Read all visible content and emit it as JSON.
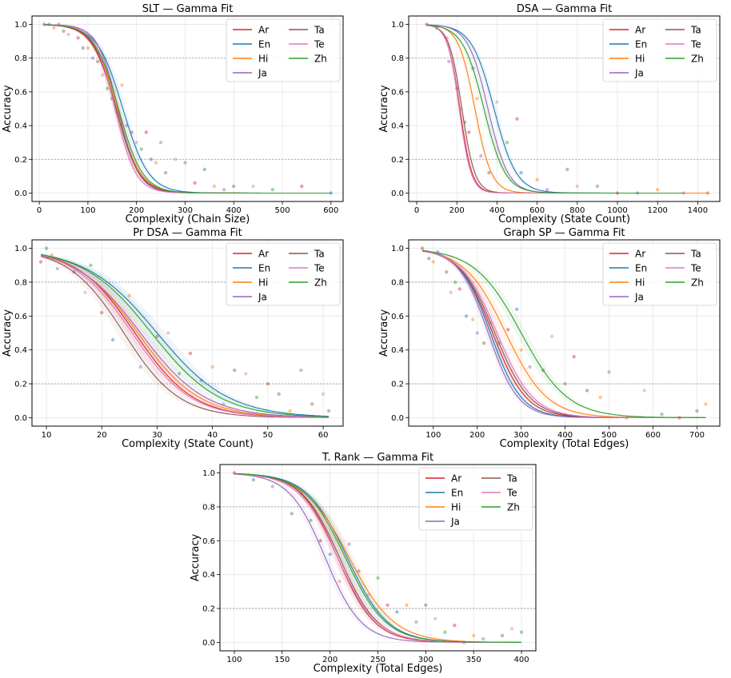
{
  "chart_data": [
    {
      "type": "line",
      "title": "SLT — Gamma Fit",
      "xlabel": "Complexity (Chain Size)",
      "ylabel": "Accuracy",
      "xlim": [
        -15,
        625
      ],
      "ylim": [
        -0.05,
        1.05
      ],
      "xticks": [
        0,
        100,
        200,
        300,
        400,
        500,
        600
      ],
      "yticks": [
        0.0,
        0.2,
        0.4,
        0.6,
        0.8,
        1.0
      ],
      "legend_position": "upper-right",
      "grid": true,
      "reference_lines": [
        0.2,
        0.8
      ],
      "x_fit_range": [
        10,
        600
      ],
      "series": [
        {
          "name": "Ar",
          "color": "#d62728",
          "fit": {
            "mid": 158,
            "width": 42
          }
        },
        {
          "name": "En",
          "color": "#1f77b4",
          "fit": {
            "mid": 172,
            "width": 45
          }
        },
        {
          "name": "Hi",
          "color": "#ff7f0e",
          "fit": {
            "mid": 160,
            "width": 40
          }
        },
        {
          "name": "Ja",
          "color": "#9467bd",
          "fit": {
            "mid": 162,
            "width": 36
          }
        },
        {
          "name": "Ta",
          "color": "#8c564b",
          "fit": {
            "mid": 158,
            "width": 40
          }
        },
        {
          "name": "Te",
          "color": "#e377c2",
          "fit": {
            "mid": 156,
            "width": 36
          }
        },
        {
          "name": "Zh",
          "color": "#2ca02c",
          "fit": {
            "mid": 163,
            "width": 42
          }
        }
      ],
      "points": [
        {
          "x": 10,
          "y": 1.0
        },
        {
          "x": 20,
          "y": 1.0
        },
        {
          "x": 30,
          "y": 0.98
        },
        {
          "x": 40,
          "y": 1.0
        },
        {
          "x": 50,
          "y": 0.96
        },
        {
          "x": 60,
          "y": 0.94
        },
        {
          "x": 70,
          "y": 0.98
        },
        {
          "x": 80,
          "y": 0.92
        },
        {
          "x": 90,
          "y": 0.86
        },
        {
          "x": 100,
          "y": 0.86
        },
        {
          "x": 110,
          "y": 0.8
        },
        {
          "x": 120,
          "y": 0.78
        },
        {
          "x": 130,
          "y": 0.7
        },
        {
          "x": 140,
          "y": 0.62
        },
        {
          "x": 150,
          "y": 0.56
        },
        {
          "x": 160,
          "y": 0.48
        },
        {
          "x": 170,
          "y": 0.64
        },
        {
          "x": 180,
          "y": 0.4
        },
        {
          "x": 190,
          "y": 0.36
        },
        {
          "x": 200,
          "y": 0.3
        },
        {
          "x": 210,
          "y": 0.26
        },
        {
          "x": 220,
          "y": 0.36
        },
        {
          "x": 230,
          "y": 0.2
        },
        {
          "x": 240,
          "y": 0.18
        },
        {
          "x": 250,
          "y": 0.3
        },
        {
          "x": 260,
          "y": 0.12
        },
        {
          "x": 280,
          "y": 0.2
        },
        {
          "x": 300,
          "y": 0.18
        },
        {
          "x": 320,
          "y": 0.06
        },
        {
          "x": 340,
          "y": 0.14
        },
        {
          "x": 360,
          "y": 0.04
        },
        {
          "x": 380,
          "y": 0.02
        },
        {
          "x": 400,
          "y": 0.04
        },
        {
          "x": 440,
          "y": 0.04
        },
        {
          "x": 480,
          "y": 0.02
        },
        {
          "x": 540,
          "y": 0.04
        },
        {
          "x": 600,
          "y": 0.0
        }
      ]
    },
    {
      "type": "line",
      "title": "DSA — Gamma Fit",
      "xlabel": "Complexity (State Count)",
      "ylabel": "Accuracy",
      "xlim": [
        -40,
        1510
      ],
      "ylim": [
        -0.05,
        1.05
      ],
      "xticks": [
        0,
        200,
        400,
        600,
        800,
        1000,
        1200,
        1400
      ],
      "yticks": [
        0.0,
        0.2,
        0.4,
        0.6,
        0.8,
        1.0
      ],
      "legend_position": "upper-right",
      "grid": true,
      "reference_lines": [
        0.2,
        0.8
      ],
      "x_fit_range": [
        50,
        1330
      ],
      "series": [
        {
          "name": "Ar",
          "color": "#d62728",
          "fit": {
            "mid": 215,
            "width": 52
          }
        },
        {
          "name": "En",
          "color": "#1f77b4",
          "fit": {
            "mid": 385,
            "width": 95
          }
        },
        {
          "name": "Hi",
          "color": "#ff7f0e",
          "fit": {
            "mid": 290,
            "width": 70
          },
          "x_end": 1450
        },
        {
          "name": "Ja",
          "color": "#9467bd",
          "fit": {
            "mid": 355,
            "width": 85
          }
        },
        {
          "name": "Ta",
          "color": "#8c564b",
          "fit": {
            "mid": 225,
            "width": 55
          }
        },
        {
          "name": "Te",
          "color": "#e377c2",
          "fit": {
            "mid": 212,
            "width": 50
          }
        },
        {
          "name": "Zh",
          "color": "#2ca02c",
          "fit": {
            "mid": 335,
            "width": 90
          }
        }
      ],
      "points": [
        {
          "x": 50,
          "y": 1.0
        },
        {
          "x": 100,
          "y": 0.98
        },
        {
          "x": 150,
          "y": 0.92
        },
        {
          "x": 160,
          "y": 0.78
        },
        {
          "x": 200,
          "y": 0.62
        },
        {
          "x": 220,
          "y": 0.5
        },
        {
          "x": 240,
          "y": 0.42
        },
        {
          "x": 260,
          "y": 0.36
        },
        {
          "x": 280,
          "y": 0.74
        },
        {
          "x": 300,
          "y": 0.56
        },
        {
          "x": 320,
          "y": 0.22
        },
        {
          "x": 360,
          "y": 0.12
        },
        {
          "x": 400,
          "y": 0.54
        },
        {
          "x": 450,
          "y": 0.3
        },
        {
          "x": 500,
          "y": 0.44
        },
        {
          "x": 520,
          "y": 0.12
        },
        {
          "x": 600,
          "y": 0.08
        },
        {
          "x": 650,
          "y": 0.02
        },
        {
          "x": 750,
          "y": 0.14
        },
        {
          "x": 800,
          "y": 0.04
        },
        {
          "x": 900,
          "y": 0.04
        },
        {
          "x": 1000,
          "y": 0.0
        },
        {
          "x": 1100,
          "y": 0.0
        },
        {
          "x": 1200,
          "y": 0.02
        },
        {
          "x": 1330,
          "y": 0.0
        },
        {
          "x": 1450,
          "y": 0.0
        }
      ]
    },
    {
      "type": "line",
      "title": "Pr DSA — Gamma Fit",
      "xlabel": "Complexity (State Count)",
      "ylabel": "Accuracy",
      "xlim": [
        7.4,
        63.6
      ],
      "ylim": [
        -0.05,
        1.05
      ],
      "xticks": [
        10,
        20,
        30,
        40,
        50,
        60
      ],
      "yticks": [
        0.0,
        0.2,
        0.4,
        0.6,
        0.8,
        1.0
      ],
      "legend_position": "upper-right",
      "grid": true,
      "reference_lines": [
        0.2,
        0.8
      ],
      "x_fit_range": [
        9,
        61
      ],
      "series": [
        {
          "name": "Ar",
          "color": "#d62728",
          "fit": {
            "mid": 26,
            "width": 9
          }
        },
        {
          "name": "En",
          "color": "#1f77b4",
          "fit": {
            "mid": 30,
            "width": 11
          }
        },
        {
          "name": "Hi",
          "color": "#ff7f0e",
          "fit": {
            "mid": 26.5,
            "width": 9.5
          }
        },
        {
          "name": "Ja",
          "color": "#9467bd",
          "fit": {
            "mid": 27,
            "width": 10
          }
        },
        {
          "name": "Ta",
          "color": "#8c564b",
          "fit": {
            "mid": 24,
            "width": 8.5
          }
        },
        {
          "name": "Te",
          "color": "#e377c2",
          "fit": {
            "mid": 25.5,
            "width": 9
          }
        },
        {
          "name": "Zh",
          "color": "#2ca02c",
          "fit": {
            "mid": 29,
            "width": 10.5
          }
        }
      ],
      "points": [
        {
          "x": 9,
          "y": 0.92
        },
        {
          "x": 10,
          "y": 1.0
        },
        {
          "x": 11,
          "y": 0.96
        },
        {
          "x": 12,
          "y": 0.88
        },
        {
          "x": 15,
          "y": 0.86
        },
        {
          "x": 17,
          "y": 0.74
        },
        {
          "x": 18,
          "y": 0.9
        },
        {
          "x": 20,
          "y": 0.62
        },
        {
          "x": 22,
          "y": 0.46
        },
        {
          "x": 25,
          "y": 0.72
        },
        {
          "x": 27,
          "y": 0.3
        },
        {
          "x": 30,
          "y": 0.48
        },
        {
          "x": 32,
          "y": 0.5
        },
        {
          "x": 34,
          "y": 0.26
        },
        {
          "x": 36,
          "y": 0.38
        },
        {
          "x": 38,
          "y": 0.22
        },
        {
          "x": 40,
          "y": 0.3
        },
        {
          "x": 42,
          "y": 0.08
        },
        {
          "x": 44,
          "y": 0.28
        },
        {
          "x": 46,
          "y": 0.26
        },
        {
          "x": 48,
          "y": 0.12
        },
        {
          "x": 50,
          "y": 0.2
        },
        {
          "x": 52,
          "y": 0.14
        },
        {
          "x": 54,
          "y": 0.04
        },
        {
          "x": 56,
          "y": 0.28
        },
        {
          "x": 58,
          "y": 0.08
        },
        {
          "x": 60,
          "y": 0.14
        },
        {
          "x": 61,
          "y": 0.04
        }
      ]
    },
    {
      "type": "line",
      "title": "Graph SP — Gamma Fit",
      "xlabel": "Complexity (Total Edges)",
      "ylabel": "Accuracy",
      "xlim": [
        44,
        752
      ],
      "ylim": [
        -0.05,
        1.05
      ],
      "xticks": [
        100,
        200,
        300,
        400,
        500,
        600,
        700
      ],
      "yticks": [
        0.0,
        0.2,
        0.4,
        0.6,
        0.8,
        1.0
      ],
      "legend_position": "upper-right",
      "grid": true,
      "reference_lines": [
        0.2,
        0.8
      ],
      "x_fit_range": [
        75,
        720
      ],
      "series": [
        {
          "name": "Ar",
          "color": "#d62728",
          "fit": {
            "mid": 235,
            "width": 65
          }
        },
        {
          "name": "En",
          "color": "#1f77b4",
          "fit": {
            "mid": 230,
            "width": 60
          }
        },
        {
          "name": "Hi",
          "color": "#ff7f0e",
          "fit": {
            "mid": 265,
            "width": 80
          }
        },
        {
          "name": "Ja",
          "color": "#9467bd",
          "fit": {
            "mid": 225,
            "width": 58
          }
        },
        {
          "name": "Ta",
          "color": "#8c564b",
          "fit": {
            "mid": 240,
            "width": 68
          }
        },
        {
          "name": "Te",
          "color": "#e377c2",
          "fit": {
            "mid": 245,
            "width": 70
          }
        },
        {
          "name": "Zh",
          "color": "#2ca02c",
          "fit": {
            "mid": 300,
            "width": 90
          }
        }
      ],
      "points": [
        {
          "x": 75,
          "y": 1.0
        },
        {
          "x": 90,
          "y": 0.94
        },
        {
          "x": 100,
          "y": 0.92
        },
        {
          "x": 110,
          "y": 0.98
        },
        {
          "x": 130,
          "y": 0.86
        },
        {
          "x": 140,
          "y": 0.74
        },
        {
          "x": 150,
          "y": 0.8
        },
        {
          "x": 160,
          "y": 0.76
        },
        {
          "x": 175,
          "y": 0.6
        },
        {
          "x": 190,
          "y": 0.58
        },
        {
          "x": 200,
          "y": 0.5
        },
        {
          "x": 215,
          "y": 0.44
        },
        {
          "x": 230,
          "y": 0.56
        },
        {
          "x": 250,
          "y": 0.44
        },
        {
          "x": 270,
          "y": 0.52
        },
        {
          "x": 290,
          "y": 0.64
        },
        {
          "x": 300,
          "y": 0.4
        },
        {
          "x": 320,
          "y": 0.3
        },
        {
          "x": 350,
          "y": 0.28
        },
        {
          "x": 370,
          "y": 0.48
        },
        {
          "x": 400,
          "y": 0.2
        },
        {
          "x": 420,
          "y": 0.36
        },
        {
          "x": 450,
          "y": 0.16
        },
        {
          "x": 480,
          "y": 0.12
        },
        {
          "x": 500,
          "y": 0.27
        },
        {
          "x": 540,
          "y": 0.0
        },
        {
          "x": 580,
          "y": 0.16
        },
        {
          "x": 620,
          "y": 0.02
        },
        {
          "x": 660,
          "y": 0.0
        },
        {
          "x": 700,
          "y": 0.04
        },
        {
          "x": 720,
          "y": 0.08
        }
      ]
    },
    {
      "type": "line",
      "title": "T. Rank — Gamma Fit",
      "xlabel": "Complexity (Total Edges)",
      "ylabel": "Accuracy",
      "xlim": [
        85,
        415
      ],
      "ylim": [
        -0.05,
        1.05
      ],
      "xticks": [
        100,
        150,
        200,
        250,
        300,
        350,
        400
      ],
      "yticks": [
        0.0,
        0.2,
        0.4,
        0.6,
        0.8,
        1.0
      ],
      "legend_position": "upper-right",
      "grid": true,
      "reference_lines": [
        0.2,
        0.8
      ],
      "x_fit_range": [
        100,
        400
      ],
      "series": [
        {
          "name": "Ar",
          "color": "#d62728",
          "fit": {
            "mid": 208,
            "width": 33
          }
        },
        {
          "name": "En",
          "color": "#1f77b4",
          "fit": {
            "mid": 218,
            "width": 36
          }
        },
        {
          "name": "Hi",
          "color": "#ff7f0e",
          "fit": {
            "mid": 220,
            "width": 40
          }
        },
        {
          "name": "Ja",
          "color": "#9467bd",
          "fit": {
            "mid": 195,
            "width": 32
          }
        },
        {
          "name": "Ta",
          "color": "#8c564b",
          "fit": {
            "mid": 210,
            "width": 34
          }
        },
        {
          "name": "Te",
          "color": "#e377c2",
          "fit": {
            "mid": 208,
            "width": 35
          }
        },
        {
          "name": "Zh",
          "color": "#2ca02c",
          "fit": {
            "mid": 216,
            "width": 36
          }
        }
      ],
      "points": [
        {
          "x": 100,
          "y": 1.0
        },
        {
          "x": 120,
          "y": 0.96
        },
        {
          "x": 130,
          "y": 0.98
        },
        {
          "x": 140,
          "y": 0.92
        },
        {
          "x": 160,
          "y": 0.76
        },
        {
          "x": 170,
          "y": 0.88
        },
        {
          "x": 180,
          "y": 0.72
        },
        {
          "x": 190,
          "y": 0.6
        },
        {
          "x": 200,
          "y": 0.52
        },
        {
          "x": 210,
          "y": 0.36
        },
        {
          "x": 220,
          "y": 0.58
        },
        {
          "x": 230,
          "y": 0.42
        },
        {
          "x": 240,
          "y": 0.28
        },
        {
          "x": 250,
          "y": 0.38
        },
        {
          "x": 260,
          "y": 0.22
        },
        {
          "x": 270,
          "y": 0.18
        },
        {
          "x": 280,
          "y": 0.22
        },
        {
          "x": 290,
          "y": 0.12
        },
        {
          "x": 300,
          "y": 0.22
        },
        {
          "x": 310,
          "y": 0.14
        },
        {
          "x": 320,
          "y": 0.06
        },
        {
          "x": 330,
          "y": 0.1
        },
        {
          "x": 340,
          "y": 0.0
        },
        {
          "x": 350,
          "y": 0.04
        },
        {
          "x": 360,
          "y": 0.02
        },
        {
          "x": 380,
          "y": 0.04
        },
        {
          "x": 390,
          "y": 0.08
        },
        {
          "x": 400,
          "y": 0.06
        }
      ]
    }
  ]
}
